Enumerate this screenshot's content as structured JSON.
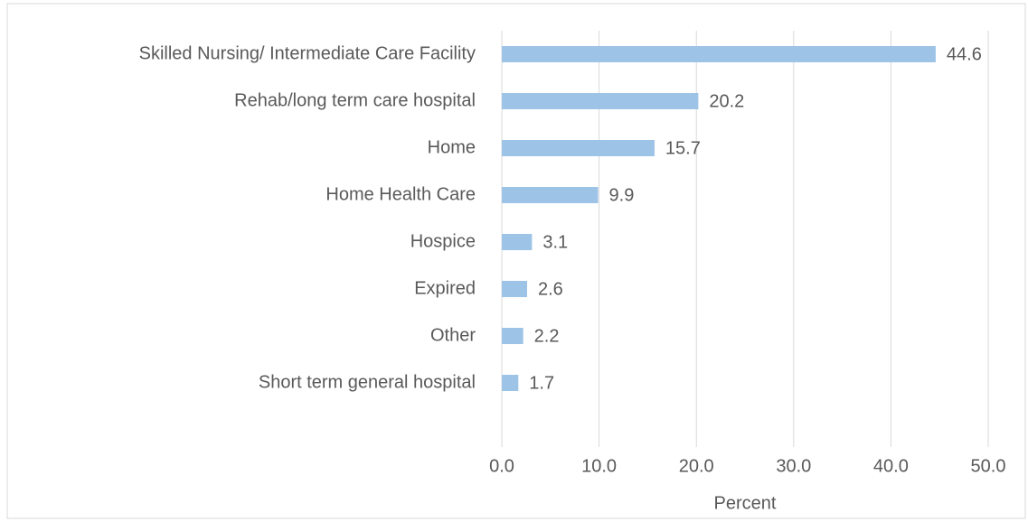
{
  "chart_data": {
    "type": "barh",
    "categories": [
      "Skilled Nursing/ Intermediate Care Facility",
      "Rehab/long term care hospital",
      "Home",
      "Home Health Care",
      "Hospice",
      "Expired",
      "Other",
      "Short term general hospital"
    ],
    "values": [
      44.6,
      20.2,
      15.7,
      9.9,
      3.1,
      2.6,
      2.2,
      1.7
    ],
    "color": "#9dc3e6",
    "xlabel": "Percent",
    "xlim": [
      0,
      50
    ],
    "xticks": [
      {
        "value": 0,
        "label": "0.0"
      },
      {
        "value": 10,
        "label": "10.0"
      },
      {
        "value": 20,
        "label": "20.0"
      },
      {
        "value": 30,
        "label": "30.0"
      },
      {
        "value": 40,
        "label": "40.0"
      },
      {
        "value": 50,
        "label": "50.0"
      }
    ],
    "grid": true
  }
}
